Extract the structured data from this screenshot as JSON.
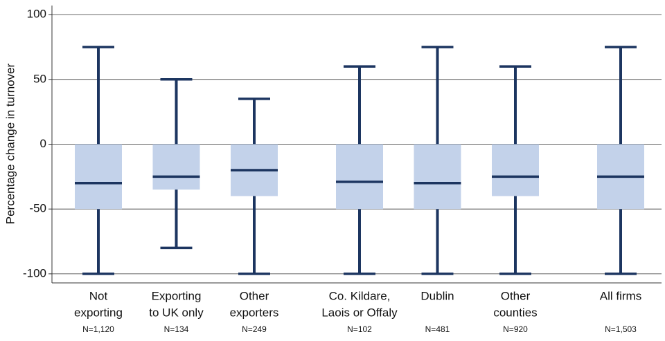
{
  "chart_data": {
    "type": "box",
    "y_label": "Percentage change in turnover",
    "categories": [
      [
        "Not",
        "exporting"
      ],
      [
        "Exporting",
        "to UK only"
      ],
      [
        "Other",
        "exporters"
      ],
      [
        "Co. Kildare,",
        "Laois or Offaly"
      ],
      [
        "Dublin"
      ],
      [
        "Other",
        "counties"
      ],
      [
        "All firms"
      ]
    ],
    "n_labels": [
      "N=1,120",
      "N=134",
      "N=249",
      "N=102",
      "N=481",
      "N=920",
      "N=1,503"
    ],
    "boxes": [
      {
        "max": 75,
        "q3": 0,
        "median": -30,
        "q1": -50,
        "min": -100
      },
      {
        "max": 50,
        "q3": 0,
        "median": -25,
        "q1": -35,
        "min": -80
      },
      {
        "max": 35,
        "q3": 0,
        "median": -20,
        "q1": -40,
        "min": -100
      },
      {
        "max": 60,
        "q3": 0,
        "median": -29,
        "q1": -50,
        "min": -100
      },
      {
        "max": 75,
        "q3": 0,
        "median": -30,
        "q1": -50,
        "min": -100
      },
      {
        "max": 60,
        "q3": 0,
        "median": -25,
        "q1": -40,
        "min": -100
      },
      {
        "max": 75,
        "q3": 0,
        "median": -25,
        "q1": -50,
        "min": -100
      }
    ],
    "box_color": "#c3d2ea",
    "line_color": "#1c3560",
    "ylim": [
      -107,
      107
    ],
    "yticks": [
      -100,
      -50,
      0,
      50,
      100
    ],
    "grid": true
  }
}
